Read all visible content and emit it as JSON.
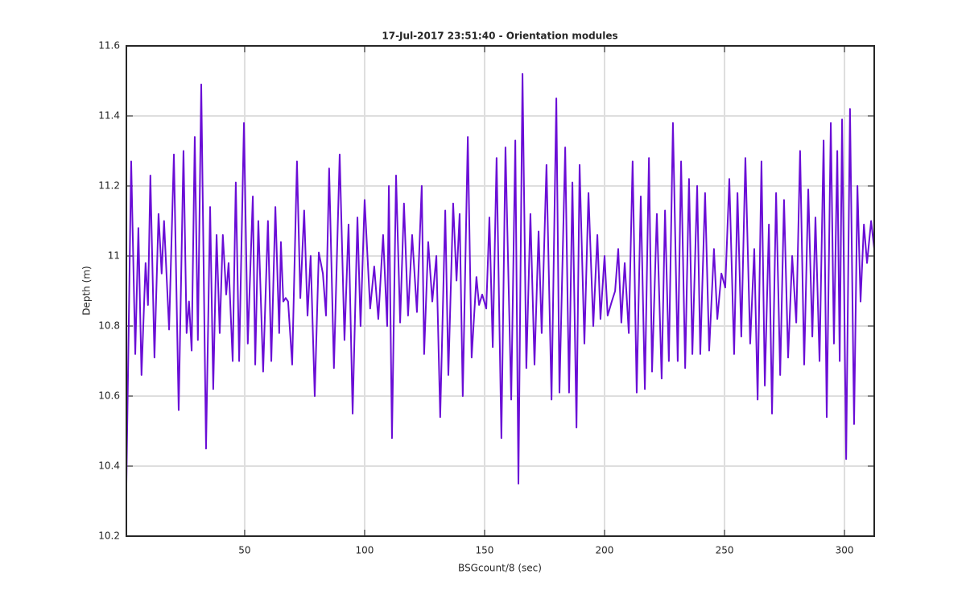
{
  "chart_data": {
    "type": "line",
    "title": "17-Jul-2017 23:51:40 - Orientation modules",
    "x_label": "BSGcount/8 (sec)",
    "y_label": "Depth (m)",
    "xlim": [
      0.7,
      312.4
    ],
    "ylim": [
      10.2,
      11.6
    ],
    "xticks": [
      50,
      100,
      150,
      200,
      250,
      300
    ],
    "yticks": [
      10.2,
      10.4,
      10.6,
      10.8,
      11,
      11.2,
      11.4,
      11.6
    ],
    "grid": true,
    "series": [
      {
        "name": "Depth",
        "color": "#6a0dd6",
        "x": [
          0.7,
          2.7,
          4.4,
          5.7,
          7.0,
          8.7,
          9.7,
          10.7,
          12.4,
          14.1,
          15.4,
          16.4,
          18.5,
          20.5,
          22.5,
          24.5,
          25.8,
          26.8,
          27.9,
          29.2,
          30.5,
          31.9,
          33.9,
          35.6,
          36.9,
          38.3,
          39.6,
          40.9,
          42.3,
          43.3,
          45.0,
          46.3,
          47.7,
          49.7,
          51.3,
          53.4,
          54.4,
          55.7,
          57.7,
          59.7,
          61.1,
          62.8,
          64.4,
          65.1,
          66.1,
          67.1,
          68.1,
          69.8,
          71.8,
          73.2,
          74.8,
          76.2,
          77.5,
          79.2,
          80.9,
          82.6,
          83.9,
          85.2,
          87.2,
          89.6,
          91.6,
          93.3,
          95.0,
          97.0,
          98.3,
          100.0,
          102.3,
          104.0,
          105.7,
          107.7,
          109.4,
          110.1,
          111.4,
          113.1,
          114.8,
          116.4,
          118.1,
          119.8,
          121.8,
          123.8,
          124.8,
          126.5,
          128.2,
          129.9,
          131.5,
          133.6,
          134.9,
          136.9,
          138.3,
          139.6,
          140.9,
          143.0,
          144.6,
          146.6,
          147.7,
          149.0,
          150.7,
          152.0,
          153.4,
          155.0,
          157.0,
          158.7,
          161.1,
          162.8,
          164.1,
          165.8,
          167.4,
          169.1,
          170.8,
          172.5,
          173.8,
          175.8,
          177.9,
          179.9,
          181.2,
          183.6,
          185.2,
          186.6,
          188.3,
          189.6,
          191.6,
          193.3,
          195.3,
          197.0,
          198.3,
          200.0,
          201.3,
          203.0,
          204.4,
          205.7,
          207.0,
          208.4,
          210.1,
          211.7,
          213.4,
          215.1,
          216.8,
          218.5,
          219.8,
          221.8,
          223.8,
          225.2,
          226.8,
          228.5,
          230.5,
          231.9,
          233.6,
          235.2,
          236.6,
          238.6,
          239.9,
          241.9,
          243.6,
          245.6,
          247.0,
          248.7,
          250.3,
          252.0,
          254.0,
          255.4,
          257.0,
          258.7,
          260.7,
          262.4,
          263.8,
          265.4,
          266.8,
          268.5,
          269.8,
          271.5,
          273.2,
          274.8,
          276.5,
          278.2,
          279.9,
          281.5,
          283.2,
          284.9,
          286.6,
          287.9,
          289.6,
          291.3,
          292.6,
          294.3,
          295.6,
          297.0,
          298.0,
          299.0,
          300.7,
          302.3,
          304.0,
          305.4,
          306.7,
          308.1,
          309.4,
          311.1,
          312.4
        ],
        "values": [
          10.35,
          11.27,
          10.72,
          11.08,
          10.66,
          10.98,
          10.86,
          11.23,
          10.71,
          11.12,
          10.95,
          11.1,
          10.79,
          11.29,
          10.56,
          11.3,
          10.78,
          10.87,
          10.73,
          11.34,
          10.76,
          11.49,
          10.45,
          11.14,
          10.62,
          11.06,
          10.78,
          11.06,
          10.89,
          10.98,
          10.7,
          11.21,
          10.7,
          11.38,
          10.75,
          11.17,
          10.69,
          11.1,
          10.67,
          11.1,
          10.7,
          11.14,
          10.78,
          11.04,
          10.87,
          10.88,
          10.87,
          10.69,
          11.27,
          10.88,
          11.13,
          10.83,
          11.0,
          10.6,
          11.01,
          10.95,
          10.83,
          11.25,
          10.68,
          11.29,
          10.76,
          11.09,
          10.55,
          11.11,
          10.8,
          11.16,
          10.85,
          10.97,
          10.82,
          11.06,
          10.8,
          11.2,
          10.48,
          11.23,
          10.81,
          11.15,
          10.83,
          11.06,
          10.84,
          11.2,
          10.72,
          11.04,
          10.87,
          11.0,
          10.54,
          11.13,
          10.66,
          11.15,
          10.93,
          11.12,
          10.6,
          11.34,
          10.71,
          10.94,
          10.86,
          10.89,
          10.85,
          11.11,
          10.74,
          11.28,
          10.48,
          11.31,
          10.59,
          11.33,
          10.35,
          11.52,
          10.68,
          11.12,
          10.69,
          11.07,
          10.78,
          11.26,
          10.59,
          11.45,
          10.61,
          11.31,
          10.61,
          11.21,
          10.51,
          11.26,
          10.75,
          11.18,
          10.8,
          11.06,
          10.82,
          11.0,
          10.83,
          10.87,
          10.9,
          11.02,
          10.81,
          10.98,
          10.78,
          11.27,
          10.61,
          11.17,
          10.62,
          11.28,
          10.67,
          11.12,
          10.65,
          11.13,
          10.7,
          11.38,
          10.7,
          11.27,
          10.68,
          11.22,
          10.72,
          11.2,
          10.72,
          11.18,
          10.73,
          11.02,
          10.82,
          10.95,
          10.91,
          11.22,
          10.72,
          11.18,
          10.77,
          11.28,
          10.75,
          11.02,
          10.59,
          11.27,
          10.63,
          11.09,
          10.55,
          11.18,
          10.66,
          11.16,
          10.71,
          11.0,
          10.81,
          11.3,
          10.69,
          11.19,
          10.77,
          11.11,
          10.7,
          11.33,
          10.54,
          11.38,
          10.75,
          11.3,
          10.7,
          11.39,
          10.42,
          11.42,
          10.52,
          11.2,
          10.87,
          11.09,
          10.98,
          11.1,
          11.02
        ]
      }
    ]
  }
}
